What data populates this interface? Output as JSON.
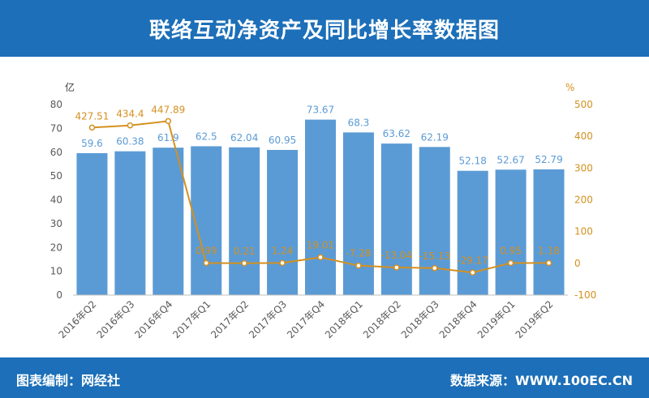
{
  "header": {
    "title": "联络互动净资产及同比增长率数据图"
  },
  "footer": {
    "left": "图表编制：网经社",
    "right": "数据来源：WWW.100EC.CN"
  },
  "chart_data": {
    "type": "bar",
    "categories": [
      "2016年Q2",
      "2016年Q3",
      "2016年Q4",
      "2017年Q1",
      "2017年Q2",
      "2017年Q3",
      "2017年Q4",
      "2018年Q1",
      "2018年Q2",
      "2018年Q3",
      "2018年Q4",
      "2019年Q1",
      "2019年Q2"
    ],
    "series": [
      {
        "type": "bar",
        "axis": "left",
        "color": "#5b9bd5",
        "values": [
          59.6,
          60.38,
          61.9,
          62.5,
          62.04,
          60.95,
          73.67,
          68.3,
          63.62,
          62.19,
          52.18,
          52.67,
          52.79
        ],
        "labels": [
          "59.6",
          "60.38",
          "61.9",
          "62.5",
          "62.04",
          "60.95",
          "73.67",
          "68.3",
          "63.62",
          "62.19",
          "52.18",
          "52.67",
          "52.79"
        ]
      },
      {
        "type": "line",
        "axis": "right",
        "color": "#d4901f",
        "values": [
          427.51,
          434.4,
          447.89,
          0.99,
          0.21,
          1.24,
          19.01,
          -7.28,
          -13.04,
          -15.13,
          -29.17,
          0.95,
          1.18
        ],
        "labels": [
          "427.51",
          "434.4",
          "447.89",
          "0.99",
          "0.21",
          "1.24",
          "19.01",
          "-7.28",
          "-13.04",
          "-15.13",
          "-29.17",
          "0.95",
          "1.18"
        ]
      }
    ],
    "y_left": {
      "unit": "亿",
      "min": 0,
      "max": 80,
      "ticks": [
        0,
        10,
        20,
        30,
        40,
        50,
        60,
        70,
        80
      ]
    },
    "y_right": {
      "unit": "%",
      "min": -100,
      "max": 500,
      "ticks": [
        -100,
        0,
        100,
        200,
        300,
        400,
        500
      ]
    },
    "grid": false,
    "legend": "none"
  }
}
